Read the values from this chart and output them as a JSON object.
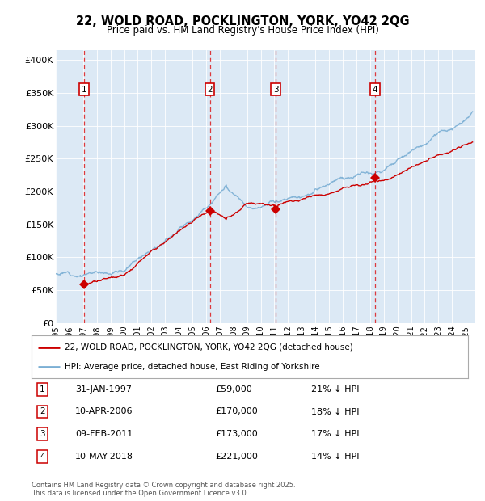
{
  "title": "22, WOLD ROAD, POCKLINGTON, YORK, YO42 2QG",
  "subtitle": "Price paid vs. HM Land Registry's House Price Index (HPI)",
  "plot_bg_color": "#dce9f5",
  "hpi_color": "#7bafd4",
  "price_color": "#cc0000",
  "ylabel_ticks": [
    "£0",
    "£50K",
    "£100K",
    "£150K",
    "£200K",
    "£250K",
    "£300K",
    "£350K",
    "£400K"
  ],
  "ytick_values": [
    0,
    50000,
    100000,
    150000,
    200000,
    250000,
    300000,
    350000,
    400000
  ],
  "ylim": [
    0,
    415000
  ],
  "xlim_start": 1995.0,
  "xlim_end": 2025.7,
  "transactions": [
    {
      "num": 1,
      "date": "31-JAN-1997",
      "price": 59000,
      "year": 1997.08,
      "pct": "21% ↓ HPI"
    },
    {
      "num": 2,
      "date": "10-APR-2006",
      "price": 170000,
      "year": 2006.27,
      "pct": "18% ↓ HPI"
    },
    {
      "num": 3,
      "date": "09-FEB-2011",
      "price": 173000,
      "year": 2011.11,
      "pct": "17% ↓ HPI"
    },
    {
      "num": 4,
      "date": "10-MAY-2018",
      "price": 221000,
      "year": 2018.36,
      "pct": "14% ↓ HPI"
    }
  ],
  "legend_line1": "22, WOLD ROAD, POCKLINGTON, YORK, YO42 2QG (detached house)",
  "legend_line2": "HPI: Average price, detached house, East Riding of Yorkshire",
  "footer": "Contains HM Land Registry data © Crown copyright and database right 2025.\nThis data is licensed under the Open Government Licence v3.0.",
  "xtick_years": [
    1995,
    1996,
    1997,
    1998,
    1999,
    2000,
    2001,
    2002,
    2003,
    2004,
    2005,
    2006,
    2007,
    2008,
    2009,
    2010,
    2011,
    2012,
    2013,
    2014,
    2015,
    2016,
    2017,
    2018,
    2019,
    2020,
    2021,
    2022,
    2023,
    2024,
    2025
  ]
}
